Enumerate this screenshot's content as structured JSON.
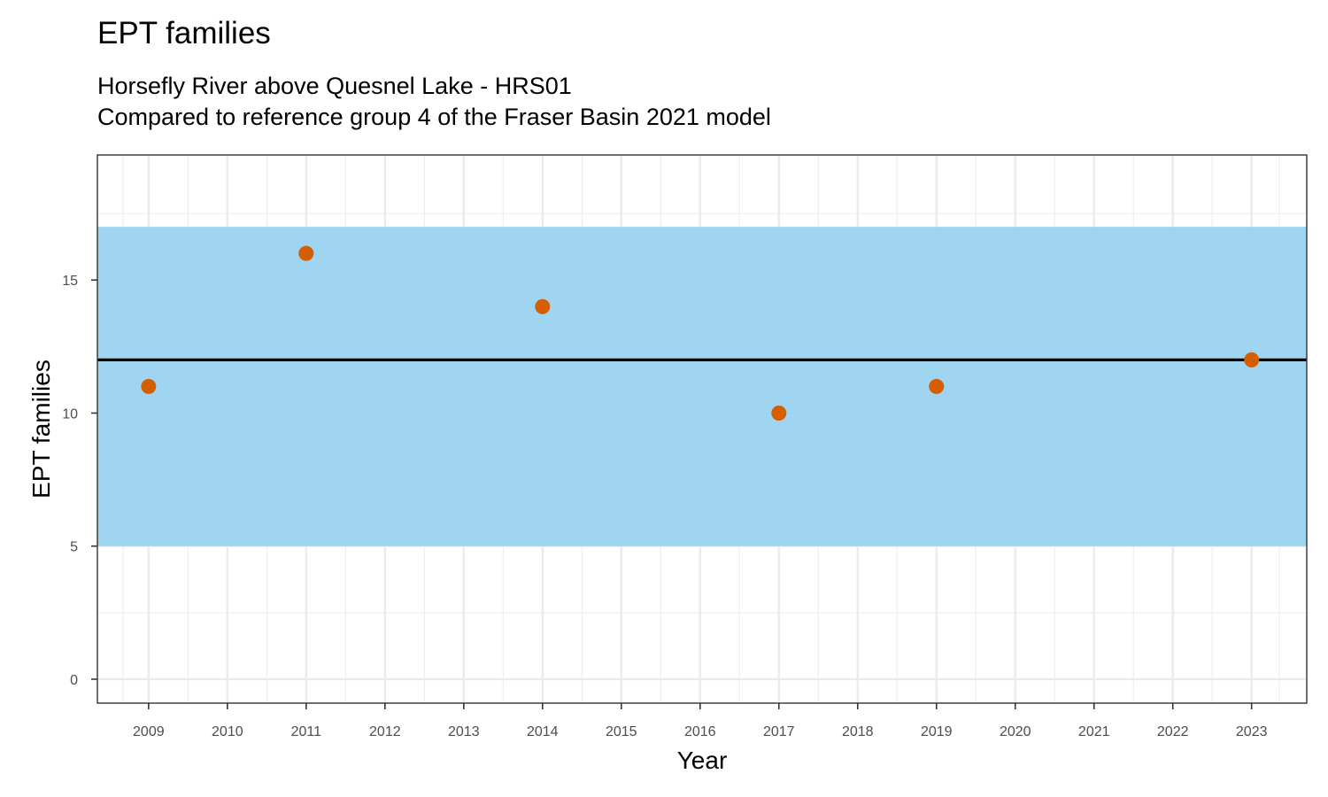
{
  "chart_data": {
    "type": "scatter",
    "title": "EPT families",
    "subtitle_lines": [
      "Horsefly River above Quesnel Lake - HRS01",
      "Compared to reference group 4 of the Fraser Basin 2021 model"
    ],
    "xlabel": "Year",
    "ylabel": "EPT families",
    "x_ticks": [
      2009,
      2010,
      2011,
      2012,
      2013,
      2014,
      2015,
      2016,
      2017,
      2018,
      2019,
      2020,
      2021,
      2022,
      2023
    ],
    "y_ticks": [
      0,
      5,
      10,
      15
    ],
    "xlim": [
      2008.35,
      2023.7
    ],
    "ylim": [
      -0.9,
      19.7
    ],
    "grid": true,
    "reference_band": {
      "ymin": 5,
      "ymax": 17,
      "color": "#9ad3f0"
    },
    "reference_line": {
      "y": 12,
      "color": "#000000"
    },
    "point_color": "#d55e00",
    "points": [
      {
        "x": 2009,
        "y": 11
      },
      {
        "x": 2011,
        "y": 16
      },
      {
        "x": 2014,
        "y": 14
      },
      {
        "x": 2017,
        "y": 10
      },
      {
        "x": 2019,
        "y": 11
      },
      {
        "x": 2023,
        "y": 12
      }
    ]
  }
}
